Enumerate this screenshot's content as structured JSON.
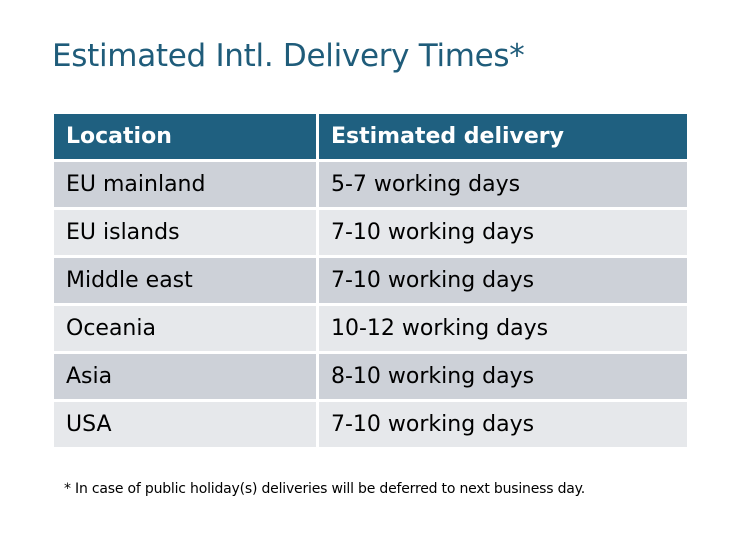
{
  "title": "Estimated Intl. Delivery Times*",
  "table": {
    "headers": [
      "Location",
      "Estimated delivery"
    ],
    "rows": [
      [
        "EU mainland",
        "5-7 working days"
      ],
      [
        "EU islands",
        "7-10 working days"
      ],
      [
        "Middle east",
        "7-10 working days"
      ],
      [
        "Oceania",
        "10-12 working days"
      ],
      [
        "Asia",
        "8-10 working days"
      ],
      [
        "USA",
        "7-10 working days"
      ]
    ]
  },
  "footnote": "* In case of public holiday(s) deliveries will be deferred to next business day.",
  "colors": {
    "header": "#1f6080",
    "row_odd": "#cdd1d8",
    "row_even": "#e6e8eb",
    "title": "#1f5c7a"
  }
}
